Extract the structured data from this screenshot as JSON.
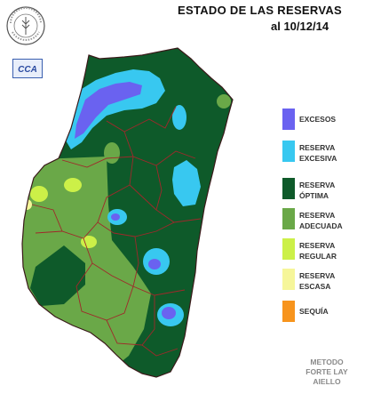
{
  "header": {
    "title": "ESTADO DE LAS RESERVAS",
    "date": "al 10/12/14"
  },
  "logos": {
    "seal_text": "BOLSA DE CEREALES DE ENTRE RIOS",
    "cca_text": "CCA"
  },
  "legend": [
    {
      "label": "EXCESOS",
      "color": "#6a62f0"
    },
    {
      "label": "RESERVA EXCESIVA",
      "color": "#38c8f0"
    },
    {
      "label": "RESERVA ÓPTIMA",
      "color": "#0e5a2a"
    },
    {
      "label": "RESERVA ADECUADA",
      "color": "#6aa848"
    },
    {
      "label": "RESERVA REGULAR",
      "color": "#ccf048"
    },
    {
      "label": "RESERVA ESCASA",
      "color": "#f6f69a"
    },
    {
      "label": "SEQUÍA",
      "color": "#f7941d"
    }
  ],
  "footer": {
    "line1": "METODO",
    "line2": "FORTE LAY",
    "line3": "AIELLO"
  }
}
